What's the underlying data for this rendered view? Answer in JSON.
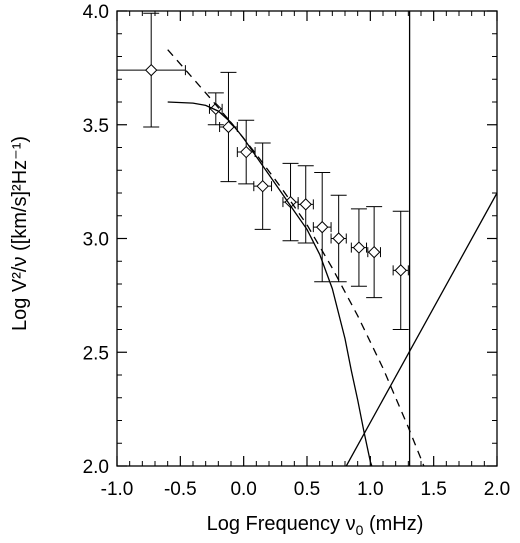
{
  "chart_data": {
    "type": "scatter",
    "title": "",
    "xlabel": "Log Frequency ν",
    "xlabel_sub": "0",
    "xlabel_unit": " (mHz)",
    "ylabel": "Log V²/ν  ([km/s]²Hz⁻¹)",
    "xlim": [
      -1.0,
      2.0
    ],
    "ylim": [
      2.0,
      4.0
    ],
    "x_ticks": [
      -1.0,
      -0.5,
      0.0,
      0.5,
      1.0,
      1.5,
      2.0
    ],
    "x_tick_labels": [
      "-1.0",
      "-0.5",
      "0.0",
      "0.5",
      "1.0",
      "1.5",
      "2.0"
    ],
    "y_ticks": [
      2.0,
      2.5,
      3.0,
      3.5,
      4.0
    ],
    "y_tick_labels": [
      "2.0",
      "2.5",
      "3.0",
      "3.5",
      "4.0"
    ],
    "grid": false,
    "legend": "none",
    "series": [
      {
        "kind": "points_with_errorbars",
        "marker": "diamond",
        "points": [
          {
            "x": -0.73,
            "y": 3.74,
            "xerr": 0.27,
            "yerr": 0.25
          },
          {
            "x": -0.22,
            "y": 3.57,
            "xerr": 0.05,
            "yerr": 0.07
          },
          {
            "x": -0.12,
            "y": 3.49,
            "xerr": 0.07,
            "yerr": 0.24
          },
          {
            "x": 0.02,
            "y": 3.38,
            "xerr": 0.07,
            "yerr": 0.14
          },
          {
            "x": 0.15,
            "y": 3.23,
            "xerr": 0.07,
            "yerr": 0.19
          },
          {
            "x": 0.37,
            "y": 3.16,
            "xerr": 0.06,
            "yerr": 0.17
          },
          {
            "x": 0.49,
            "y": 3.15,
            "xerr": 0.06,
            "yerr": 0.17
          },
          {
            "x": 0.62,
            "y": 3.05,
            "xerr": 0.07,
            "yerr": 0.24
          },
          {
            "x": 0.75,
            "y": 3.0,
            "xerr": 0.06,
            "yerr": 0.19
          },
          {
            "x": 0.91,
            "y": 2.96,
            "xerr": 0.06,
            "yerr": 0.17
          },
          {
            "x": 1.03,
            "y": 2.94,
            "xerr": 0.05,
            "yerr": 0.2
          },
          {
            "x": 1.24,
            "y": 2.86,
            "xerr": 0.06,
            "yerr": 0.26
          }
        ]
      },
      {
        "kind": "line",
        "style": "dashed",
        "x": [
          -0.6,
          -0.3,
          -0.1,
          0.1,
          0.3,
          0.5,
          0.7,
          0.9,
          1.1,
          1.3,
          1.43
        ],
        "y": [
          3.83,
          3.64,
          3.51,
          3.37,
          3.22,
          3.06,
          2.87,
          2.66,
          2.43,
          2.17,
          1.99
        ]
      },
      {
        "kind": "line",
        "style": "solid",
        "x": [
          -0.6,
          -0.4,
          -0.3,
          -0.2,
          -0.1,
          0.0,
          0.1,
          0.2,
          0.3,
          0.4,
          0.5,
          0.6,
          0.7,
          0.8,
          0.85,
          0.9,
          0.95,
          1.0,
          1.03
        ],
        "y": [
          3.6,
          3.595,
          3.585,
          3.56,
          3.51,
          3.44,
          3.36,
          3.28,
          3.2,
          3.12,
          3.04,
          2.93,
          2.78,
          2.56,
          2.42,
          2.29,
          2.15,
          2.02,
          1.97
        ]
      },
      {
        "kind": "line",
        "style": "solid",
        "x": [
          0.81,
          2.0
        ],
        "y": [
          2.0,
          3.2
        ]
      },
      {
        "kind": "vline",
        "style": "solid",
        "x": 1.31
      }
    ]
  }
}
